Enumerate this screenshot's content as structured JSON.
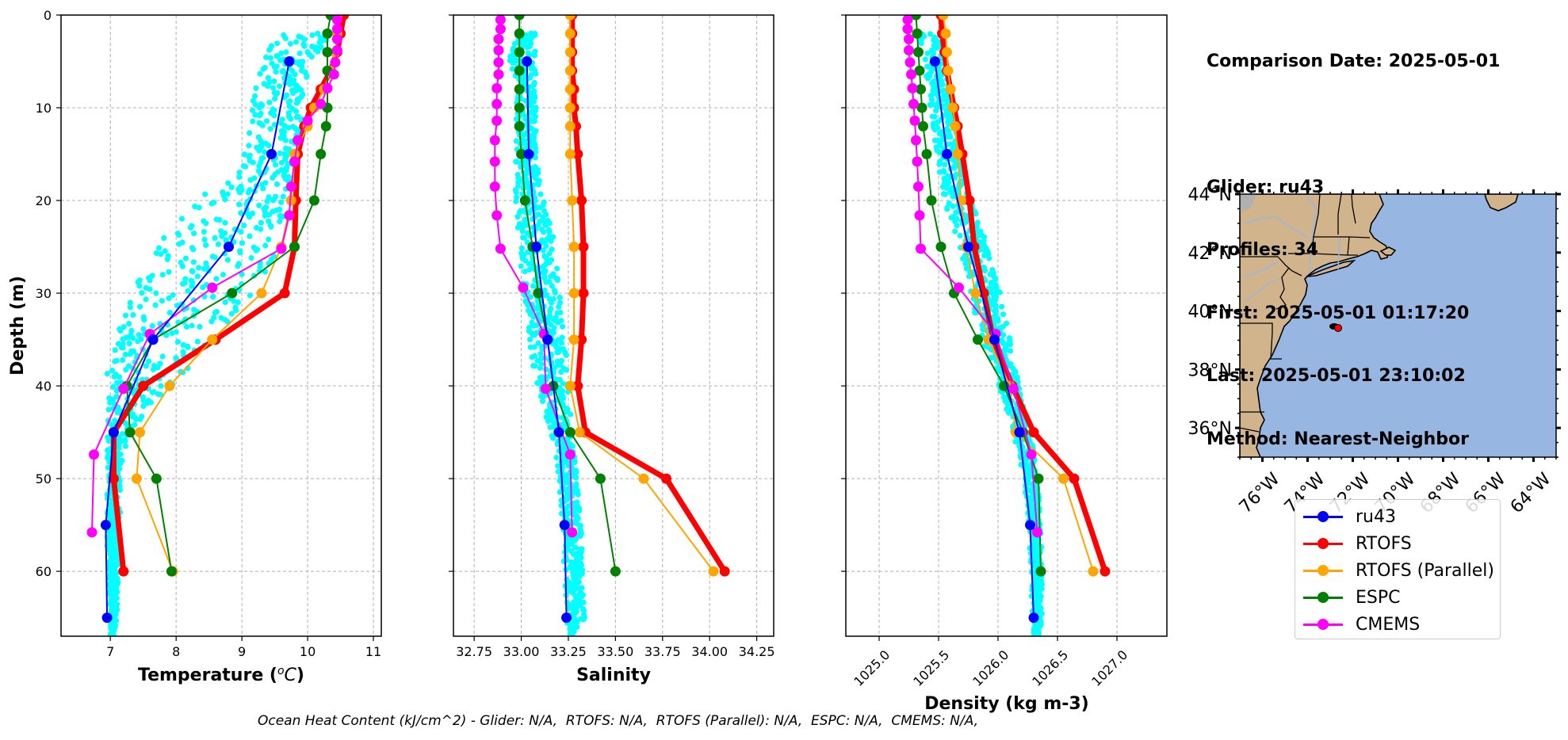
{
  "info": {
    "comparison_date": "Comparison Date: 2025-05-01",
    "glider": "Glider: ru43",
    "profiles": "Profiles: 34",
    "first": "First: 2025-05-01 01:17:20",
    "last": "Last: 2025-05-01 23:10:02",
    "method": "Method: Nearest-Neighbor"
  },
  "footer": "Ocean Heat Content (kJ/cm^2) - Glider: N/A,  RTOFS: N/A,  RTOFS (Parallel): N/A,  ESPC: N/A,  CMEMS: N/A,",
  "colors": {
    "ru43": "#0000ff",
    "RTOFS": "#ff0000",
    "RTOFS (Parallel)": "#ffa500",
    "ESPC": "#008000",
    "CMEMS": "#ff00ff",
    "glider_scatter": "#00ffff",
    "land": "#d2b48c",
    "ocean": "#97b6e1",
    "river": "#97b6e1",
    "grid": "#b0b0b0"
  },
  "legend": [
    {
      "name": "ru43",
      "color": "#0000ff"
    },
    {
      "name": "RTOFS",
      "color": "#ff0000"
    },
    {
      "name": "RTOFS (Parallel)",
      "color": "#ffa500"
    },
    {
      "name": "ESPC",
      "color": "#008000"
    },
    {
      "name": "CMEMS",
      "color": "#ff00ff"
    }
  ],
  "map": {
    "lat_ticks": [
      "44°N",
      "42°N",
      "40°N",
      "38°N",
      "36°N"
    ],
    "lat_values": [
      44,
      42,
      40,
      38,
      36
    ],
    "lon_ticks": [
      "76°W",
      "74°W",
      "72°W",
      "70°W",
      "68°W",
      "66°W",
      "64°W"
    ],
    "lon_values": [
      -76,
      -74,
      -72,
      -70,
      -68,
      -66,
      -64
    ],
    "extent": {
      "lon": [
        -77,
        -63
      ],
      "lat": [
        35,
        44
      ]
    },
    "glider_track": {
      "lon": -72.2,
      "lat": 39.57
    },
    "glider_current": {
      "lon": -72.05,
      "lat": 39.54
    }
  },
  "chart_data": [
    {
      "type": "line",
      "title": "",
      "xlabel": "Temperature (°C)",
      "ylabel": "Depth (m)",
      "xlim": [
        6.25,
        11.12
      ],
      "ylim": [
        67,
        0
      ],
      "xticks": [
        7,
        8,
        9,
        10,
        11
      ],
      "xtick_labels": [
        "7",
        "8",
        "9",
        "10",
        "11"
      ],
      "yticks": [
        0,
        10,
        20,
        30,
        40,
        50,
        60
      ],
      "ytick_labels": [
        "0",
        "10",
        "20",
        "30",
        "40",
        "50",
        "60"
      ],
      "grid": true,
      "scatter": {
        "name": "glider profiles",
        "depth": [
          2,
          5,
          8,
          11,
          14,
          17,
          20,
          23,
          26,
          29,
          32,
          35,
          38,
          41,
          44,
          47,
          50,
          53,
          56,
          59,
          62,
          65,
          67
        ],
        "min": [
          9.6,
          9.25,
          9.15,
          9.1,
          9.05,
          8.95,
          8.3,
          7.9,
          7.6,
          7.4,
          7.2,
          7.05,
          6.95,
          6.95,
          6.95,
          6.95,
          6.95,
          6.95,
          6.95,
          6.95,
          6.98,
          7.0,
          7.0
        ],
        "max": [
          10.5,
          10.05,
          10.0,
          9.95,
          9.85,
          9.75,
          9.7,
          9.6,
          9.5,
          9.35,
          8.95,
          8.5,
          8.2,
          7.8,
          7.4,
          7.2,
          7.15,
          7.15,
          7.15,
          7.15,
          7.12,
          7.1,
          7.05
        ]
      },
      "series": [
        {
          "name": "ru43",
          "depth": [
            5,
            15,
            25,
            35,
            45,
            55,
            65
          ],
          "values": [
            9.72,
            9.45,
            8.8,
            7.65,
            7.05,
            6.93,
            6.95
          ]
        },
        {
          "name": "RTOFS",
          "depth": [
            0,
            2,
            4,
            6,
            8,
            10,
            12,
            15,
            20,
            25,
            30,
            35,
            40,
            45,
            50,
            60
          ],
          "values": [
            10.55,
            10.5,
            10.45,
            10.35,
            10.2,
            10.05,
            9.95,
            9.85,
            9.82,
            9.8,
            9.65,
            8.6,
            7.5,
            7.05,
            7.05,
            7.2
          ]
        },
        {
          "name": "RTOFS (Parallel)",
          "depth": [
            0,
            2,
            4,
            6,
            8,
            10,
            12,
            15,
            20,
            25,
            30,
            35,
            40,
            45,
            50,
            60
          ],
          "values": [
            10.45,
            10.45,
            10.42,
            10.35,
            10.25,
            10.1,
            10.0,
            9.8,
            9.75,
            9.6,
            9.3,
            8.55,
            7.9,
            7.45,
            7.4,
            7.95
          ]
        },
        {
          "name": "ESPC",
          "depth": [
            0,
            2,
            4,
            6,
            10,
            12,
            15,
            20,
            25,
            30,
            35,
            40,
            45,
            50,
            60
          ],
          "values": [
            10.35,
            10.3,
            10.3,
            10.3,
            10.3,
            10.28,
            10.2,
            10.1,
            9.8,
            8.85,
            7.65,
            7.25,
            7.3,
            7.7,
            7.93
          ]
        },
        {
          "name": "CMEMS",
          "depth": [
            0.5,
            1.5,
            2.6,
            3.8,
            5.1,
            6.4,
            7.9,
            9.6,
            11.4,
            13.5,
            15.8,
            18.5,
            21.6,
            25.2,
            29.4,
            34.4,
            40.3,
            47.4,
            55.8
          ],
          "values": [
            10.45,
            10.45,
            10.45,
            10.45,
            10.42,
            10.4,
            10.3,
            10.2,
            10.0,
            9.85,
            9.8,
            9.75,
            9.72,
            9.6,
            8.55,
            7.6,
            7.2,
            6.75,
            6.72
          ]
        }
      ]
    },
    {
      "type": "line",
      "title": "",
      "xlabel": "Salinity",
      "ylabel": "",
      "xlim": [
        32.64,
        34.34
      ],
      "ylim": [
        67,
        0
      ],
      "xticks": [
        32.75,
        33.0,
        33.25,
        33.5,
        33.75,
        34.0,
        34.25
      ],
      "xtick_labels": [
        "32.75",
        "33.00",
        "33.25",
        "33.50",
        "33.75",
        "34.00",
        "34.25"
      ],
      "yticks": [
        0,
        10,
        20,
        30,
        40,
        50,
        60
      ],
      "grid": true,
      "scatter": {
        "name": "glider profiles",
        "depth": [
          2,
          5,
          8,
          11,
          14,
          17,
          20,
          23,
          26,
          29,
          32,
          35,
          38,
          41,
          44,
          47,
          50,
          53,
          56,
          59,
          62,
          65,
          67
        ],
        "min": [
          32.98,
          32.93,
          32.96,
          32.97,
          32.97,
          32.97,
          32.97,
          32.98,
          32.99,
          33.0,
          33.02,
          33.04,
          33.06,
          33.1,
          33.14,
          33.18,
          33.2,
          33.21,
          33.22,
          33.22,
          33.23,
          33.24,
          33.24
        ],
        "max": [
          33.08,
          33.08,
          33.08,
          33.08,
          33.08,
          33.09,
          33.12,
          33.16,
          33.19,
          33.2,
          33.22,
          33.23,
          33.25,
          33.26,
          33.27,
          33.28,
          33.3,
          33.31,
          33.32,
          33.33,
          33.33,
          33.34,
          33.27
        ]
      },
      "series": [
        {
          "name": "ru43",
          "depth": [
            5,
            15,
            25,
            35,
            45,
            55,
            65
          ],
          "values": [
            33.03,
            33.04,
            33.08,
            33.14,
            33.2,
            33.23,
            33.24
          ]
        },
        {
          "name": "RTOFS",
          "depth": [
            0,
            2,
            4,
            6,
            8,
            10,
            12,
            15,
            20,
            25,
            30,
            35,
            40,
            45,
            50,
            60
          ],
          "values": [
            33.27,
            33.27,
            33.27,
            33.27,
            33.28,
            33.28,
            33.29,
            33.3,
            33.32,
            33.33,
            33.33,
            33.32,
            33.3,
            33.34,
            33.77,
            34.08
          ]
        },
        {
          "name": "RTOFS (Parallel)",
          "depth": [
            0,
            2,
            4,
            6,
            8,
            10,
            12,
            15,
            20,
            25,
            30,
            35,
            40,
            45,
            50,
            60
          ],
          "values": [
            33.26,
            33.26,
            33.26,
            33.26,
            33.26,
            33.26,
            33.26,
            33.26,
            33.27,
            33.28,
            33.28,
            33.28,
            33.26,
            33.31,
            33.65,
            34.02
          ]
        },
        {
          "name": "ESPC",
          "depth": [
            0,
            2,
            4,
            6,
            8,
            10,
            12,
            15,
            20,
            25,
            30,
            35,
            40,
            45,
            50,
            60
          ],
          "values": [
            32.99,
            32.99,
            32.99,
            32.99,
            32.99,
            32.99,
            32.99,
            33.0,
            33.02,
            33.06,
            33.09,
            33.14,
            33.17,
            33.26,
            33.42,
            33.5
          ]
        },
        {
          "name": "CMEMS",
          "depth": [
            0.5,
            1.5,
            2.6,
            3.8,
            5.1,
            6.4,
            7.9,
            9.6,
            11.4,
            13.5,
            15.8,
            18.5,
            21.6,
            25.2,
            29.4,
            34.4,
            40.3,
            47.4,
            55.8
          ],
          "values": [
            32.89,
            32.89,
            32.88,
            32.88,
            32.88,
            32.88,
            32.87,
            32.87,
            32.87,
            32.86,
            32.86,
            32.86,
            32.87,
            32.89,
            33.01,
            33.12,
            33.13,
            33.26,
            33.27
          ]
        }
      ]
    },
    {
      "type": "line",
      "title": "",
      "xlabel": "Density (kg m-3)",
      "ylabel": "",
      "xlim": [
        1024.72,
        1027.42
      ],
      "ylim": [
        67,
        0
      ],
      "xticks": [
        1025.0,
        1025.5,
        1026.0,
        1026.5,
        1027.0
      ],
      "xtick_labels": [
        "1025.0",
        "1025.5",
        "1026.0",
        "1026.5",
        "1027.0"
      ],
      "yticks": [
        0,
        10,
        20,
        30,
        40,
        50,
        60
      ],
      "grid": true,
      "scatter": {
        "name": "glider profiles",
        "depth": [
          2,
          5,
          8,
          11,
          14,
          17,
          20,
          23,
          26,
          29,
          32,
          35,
          38,
          41,
          44,
          47,
          50,
          53,
          56,
          59,
          62,
          65,
          67
        ],
        "min": [
          1025.33,
          1025.38,
          1025.41,
          1025.44,
          1025.47,
          1025.5,
          1025.55,
          1025.62,
          1025.7,
          1025.75,
          1025.8,
          1025.86,
          1025.95,
          1026.03,
          1026.1,
          1026.17,
          1026.22,
          1026.24,
          1026.26,
          1026.27,
          1026.28,
          1026.29,
          1026.3
        ],
        "max": [
          1025.55,
          1025.57,
          1025.6,
          1025.64,
          1025.68,
          1025.72,
          1025.78,
          1025.86,
          1025.93,
          1026.0,
          1026.05,
          1026.1,
          1026.14,
          1026.2,
          1026.25,
          1026.3,
          1026.33,
          1026.35,
          1026.36,
          1026.37,
          1026.37,
          1026.37,
          1026.35
        ]
      },
      "series": [
        {
          "name": "ru43",
          "depth": [
            5,
            15,
            25,
            35,
            45,
            55,
            65
          ],
          "values": [
            1025.47,
            1025.57,
            1025.75,
            1025.97,
            1026.18,
            1026.27,
            1026.3
          ]
        },
        {
          "name": "RTOFS",
          "depth": [
            0,
            2,
            4,
            6,
            8,
            10,
            12,
            15,
            20,
            25,
            30,
            35,
            40,
            45,
            50,
            60
          ],
          "values": [
            1025.52,
            1025.53,
            1025.55,
            1025.57,
            1025.6,
            1025.63,
            1025.66,
            1025.7,
            1025.76,
            1025.8,
            1025.88,
            1025.96,
            1026.12,
            1026.3,
            1026.64,
            1026.9
          ]
        },
        {
          "name": "RTOFS (Parallel)",
          "depth": [
            0,
            2,
            4,
            6,
            8,
            10,
            12,
            15,
            20,
            25,
            30,
            35,
            40,
            45,
            50,
            60
          ],
          "values": [
            1025.54,
            1025.56,
            1025.57,
            1025.58,
            1025.6,
            1025.62,
            1025.64,
            1025.66,
            1025.69,
            1025.73,
            1025.81,
            1025.92,
            1026.1,
            1026.15,
            1026.55,
            1026.8
          ]
        },
        {
          "name": "ESPC",
          "depth": [
            0,
            2,
            4,
            6,
            8,
            10,
            12,
            15,
            20,
            25,
            30,
            35,
            40,
            45,
            50,
            60
          ],
          "values": [
            1025.31,
            1025.32,
            1025.33,
            1025.34,
            1025.35,
            1025.36,
            1025.37,
            1025.4,
            1025.44,
            1025.52,
            1025.63,
            1025.83,
            1026.05,
            1026.21,
            1026.34,
            1026.36
          ]
        },
        {
          "name": "CMEMS",
          "depth": [
            0.5,
            1.5,
            2.6,
            3.8,
            5.1,
            6.4,
            7.9,
            9.6,
            11.4,
            13.5,
            15.8,
            18.5,
            21.6,
            25.2,
            29.4,
            34.4,
            40.3,
            47.4,
            55.8
          ],
          "values": [
            1025.24,
            1025.24,
            1025.25,
            1025.25,
            1025.26,
            1025.27,
            1025.28,
            1025.29,
            1025.3,
            1025.31,
            1025.32,
            1025.33,
            1025.34,
            1025.35,
            1025.67,
            1025.98,
            1026.13,
            1026.28,
            1026.33
          ]
        }
      ]
    }
  ]
}
